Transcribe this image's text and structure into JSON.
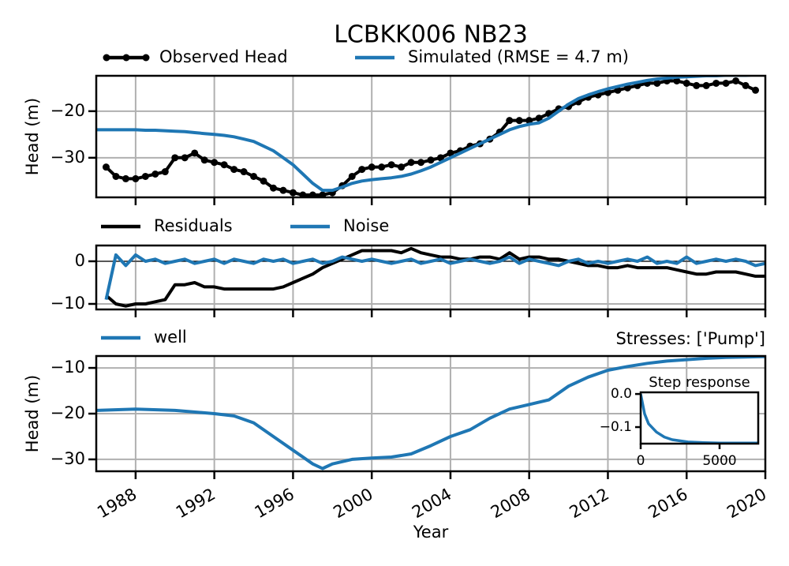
{
  "chart_data": [
    {
      "type": "line",
      "title": "LCBKK006 NB23",
      "ylabel": "Head (m)",
      "x": [
        1986,
        1986.5,
        1987,
        1987.5,
        1988,
        1988.5,
        1989,
        1989.5,
        1990,
        1990.5,
        1991,
        1991.5,
        1992,
        1992.5,
        1993,
        1993.5,
        1994,
        1994.5,
        1995,
        1995.5,
        1996,
        1996.5,
        1997,
        1997.5,
        1998,
        1998.5,
        1999,
        1999.5,
        2000,
        2000.5,
        2001,
        2001.5,
        2002,
        2002.5,
        2003,
        2003.5,
        2004,
        2004.5,
        2005,
        2005.5,
        2006,
        2006.5,
        2007,
        2007.5,
        2008,
        2008.5,
        2009,
        2009.5,
        2010,
        2010.5,
        2011,
        2011.5,
        2012,
        2012.5,
        2013,
        2013.5,
        2014,
        2014.5,
        2015,
        2015.5,
        2016,
        2016.5,
        2017,
        2017.5,
        2018,
        2018.5,
        2019,
        2019.5,
        2020
      ],
      "series": [
        {
          "name": "Observed Head",
          "color": "#000000",
          "marker": true,
          "values": [
            null,
            -32,
            -34,
            -34.5,
            -34.5,
            -34,
            -33.5,
            -33,
            -30,
            -30,
            -29,
            -30.5,
            -31,
            -31.5,
            -32.5,
            -33,
            -34,
            -35,
            -36.5,
            -37,
            -37.5,
            -38,
            -38,
            -38,
            -37.5,
            -36,
            -34,
            -32.5,
            -32,
            -32,
            -31.5,
            -32,
            -31,
            -31,
            -30.5,
            -30,
            -29,
            -28.5,
            -27.5,
            -27,
            -26,
            -24.5,
            -22,
            -22,
            -22,
            -21.5,
            -20.5,
            -19.5,
            -19,
            -18,
            -17,
            -16.5,
            -16,
            -15.5,
            -15,
            -14.5,
            -14,
            -14,
            -13.5,
            -13.5,
            -14,
            -14.5,
            -14.5,
            -14,
            -14,
            -13.5,
            -14.5,
            -15.5,
            null
          ]
        },
        {
          "name": "Simulated (RMSE = 4.7 m)",
          "color": "#1f77b4",
          "marker": false,
          "values": [
            -24,
            -24,
            -24,
            -24,
            -24,
            -24.1,
            -24.1,
            -24.2,
            -24.3,
            -24.4,
            -24.6,
            -24.8,
            -25,
            -25.2,
            -25.5,
            -26,
            -26.5,
            -27.5,
            -28.5,
            -30,
            -31.5,
            -33.5,
            -35.5,
            -37,
            -37,
            -36.3,
            -35.5,
            -35,
            -34.7,
            -34.5,
            -34.3,
            -34,
            -33.5,
            -32.8,
            -32,
            -31,
            -30,
            -29,
            -28,
            -27,
            -26,
            -25,
            -24,
            -23.3,
            -22.8,
            -22.5,
            -21.5,
            -20,
            -18.5,
            -17.3,
            -16.5,
            -15.8,
            -15.2,
            -14.7,
            -14.2,
            -13.8,
            -13.4,
            -13.1,
            -12.9,
            -12.7,
            -12.6,
            -12.5,
            -12.4,
            -12.4,
            -12.3,
            -12.3,
            -12.3,
            -12.2,
            -12.2
          ]
        }
      ],
      "xlim": [
        1986,
        2020
      ],
      "xticks": [
        1988,
        1992,
        1996,
        2000,
        2004,
        2008,
        2012,
        2016,
        2020
      ],
      "ylim": [
        -38.5,
        -12.4
      ],
      "yticks": [
        {
          "value": -30,
          "label": "−30"
        },
        {
          "value": -20,
          "label": "−20"
        }
      ],
      "grid": true
    },
    {
      "type": "line",
      "x": [
        1986,
        1986.5,
        1987,
        1987.5,
        1988,
        1988.5,
        1989,
        1989.5,
        1990,
        1990.5,
        1991,
        1991.5,
        1992,
        1992.5,
        1993,
        1993.5,
        1994,
        1994.5,
        1995,
        1995.5,
        1996,
        1996.5,
        1997,
        1997.5,
        1998,
        1998.5,
        1999,
        1999.5,
        2000,
        2000.5,
        2001,
        2001.5,
        2002,
        2002.5,
        2003,
        2003.5,
        2004,
        2004.5,
        2005,
        2005.5,
        2006,
        2006.5,
        2007,
        2007.5,
        2008,
        2008.5,
        2009,
        2009.5,
        2010,
        2010.5,
        2011,
        2011.5,
        2012,
        2012.5,
        2013,
        2013.5,
        2014,
        2014.5,
        2015,
        2015.5,
        2016,
        2016.5,
        2017,
        2017.5,
        2018,
        2018.5,
        2019,
        2019.5,
        2020
      ],
      "series": [
        {
          "name": "Residuals",
          "color": "#000000",
          "values": [
            null,
            -8,
            -10,
            -10.5,
            -10,
            -10,
            -9.5,
            -9,
            -5.5,
            -5.5,
            -5,
            -6,
            -6,
            -6.5,
            -6.5,
            -6.5,
            -6.5,
            -6.5,
            -6.5,
            -6,
            -5,
            -4,
            -3,
            -1.5,
            -0.5,
            0.5,
            1.5,
            2.5,
            2.5,
            2.5,
            2.5,
            2,
            3,
            2,
            1.5,
            1,
            1,
            0.5,
            0.5,
            1,
            1,
            0.5,
            2,
            0.5,
            1,
            1,
            0.5,
            0.5,
            0,
            -0.5,
            -1,
            -1,
            -1.5,
            -1.5,
            -1,
            -1.5,
            -1.5,
            -1.5,
            -1.5,
            -2,
            -2.5,
            -3,
            -3,
            -2.5,
            -2.5,
            -2.5,
            -3,
            -3.5,
            -3.5
          ]
        },
        {
          "name": "Noise",
          "color": "#1f77b4",
          "values": [
            null,
            -9,
            1.5,
            -1,
            1.5,
            0,
            0.5,
            -0.5,
            0,
            0.5,
            -0.5,
            0,
            0.5,
            -0.5,
            0.5,
            0,
            -0.5,
            0.5,
            0,
            0.5,
            -0.5,
            0,
            0.5,
            -0.5,
            0,
            1,
            0.5,
            0,
            0.5,
            0,
            -0.5,
            0,
            0.5,
            -0.5,
            0,
            0.5,
            -0.5,
            0,
            0.5,
            0,
            -0.5,
            0,
            1,
            -0.5,
            0.5,
            0,
            -0.5,
            -1,
            0,
            0.5,
            -0.5,
            0,
            -0.5,
            0,
            0.5,
            0,
            1,
            -0.5,
            0,
            -0.5,
            1,
            -0.5,
            0,
            0.5,
            0,
            0.5,
            0,
            -1,
            -0.5
          ]
        }
      ],
      "xlim": [
        1986,
        2020
      ],
      "xticks": [
        1988,
        1992,
        1996,
        2000,
        2004,
        2008,
        2012,
        2016,
        2020
      ],
      "ylim": [
        -11.3,
        3.7
      ],
      "yticks": [
        {
          "value": -10,
          "label": "−10"
        },
        0
      ],
      "grid": true,
      "axhline": 0
    },
    {
      "type": "line",
      "title_right": "Stresses: ['Pump']",
      "ylabel": "Head (m)",
      "xlabel": "Year",
      "x": [
        1986,
        1988,
        1990,
        1992,
        1993,
        1994,
        1995,
        1996,
        1997,
        1997.5,
        1998,
        1999,
        2000,
        2001,
        2002,
        2003,
        2004,
        2005,
        2006,
        2007,
        2008,
        2009,
        2010,
        2011,
        2012,
        2013,
        2014,
        2015,
        2016,
        2017,
        2018,
        2019,
        2020
      ],
      "series": [
        {
          "name": "well",
          "color": "#1f77b4",
          "values": [
            -19.3,
            -19,
            -19.3,
            -20,
            -20.5,
            -22,
            -25,
            -28,
            -31,
            -32,
            -31,
            -30,
            -29.7,
            -29.5,
            -28.8,
            -27,
            -25,
            -23.5,
            -21,
            -19,
            -18,
            -17,
            -14,
            -12,
            -10.5,
            -9.7,
            -9,
            -8.5,
            -8.2,
            -7.9,
            -7.7,
            -7.6,
            -7.5
          ]
        }
      ],
      "xlim": [
        1986,
        2020
      ],
      "xticks": [
        1988,
        1992,
        1996,
        2000,
        2004,
        2008,
        2012,
        2016,
        2020
      ],
      "ylim": [
        -32.6,
        -7.4
      ],
      "yticks": [
        {
          "value": -30,
          "label": "−30"
        },
        {
          "value": -20,
          "label": "−20"
        },
        {
          "value": -10,
          "label": "−10"
        }
      ],
      "grid": true
    },
    {
      "type": "line",
      "title": "Step response",
      "x": [
        0,
        250,
        500,
        1000,
        1500,
        2000,
        3000,
        4000,
        5000,
        6000,
        7450
      ],
      "series": [
        {
          "color": "#1f77b4",
          "values": [
            0,
            -0.06,
            -0.09,
            -0.115,
            -0.13,
            -0.138,
            -0.145,
            -0.147,
            -0.148,
            -0.148,
            -0.148
          ]
        }
      ],
      "xlim": [
        0,
        7450
      ],
      "xticks": [
        0,
        5000
      ],
      "ylim": [
        -0.15,
        0.005
      ],
      "yticks": [
        {
          "value": -0.1,
          "label": "−0.1"
        },
        {
          "value": 0,
          "label": "0.0"
        }
      ],
      "grid": false
    }
  ]
}
